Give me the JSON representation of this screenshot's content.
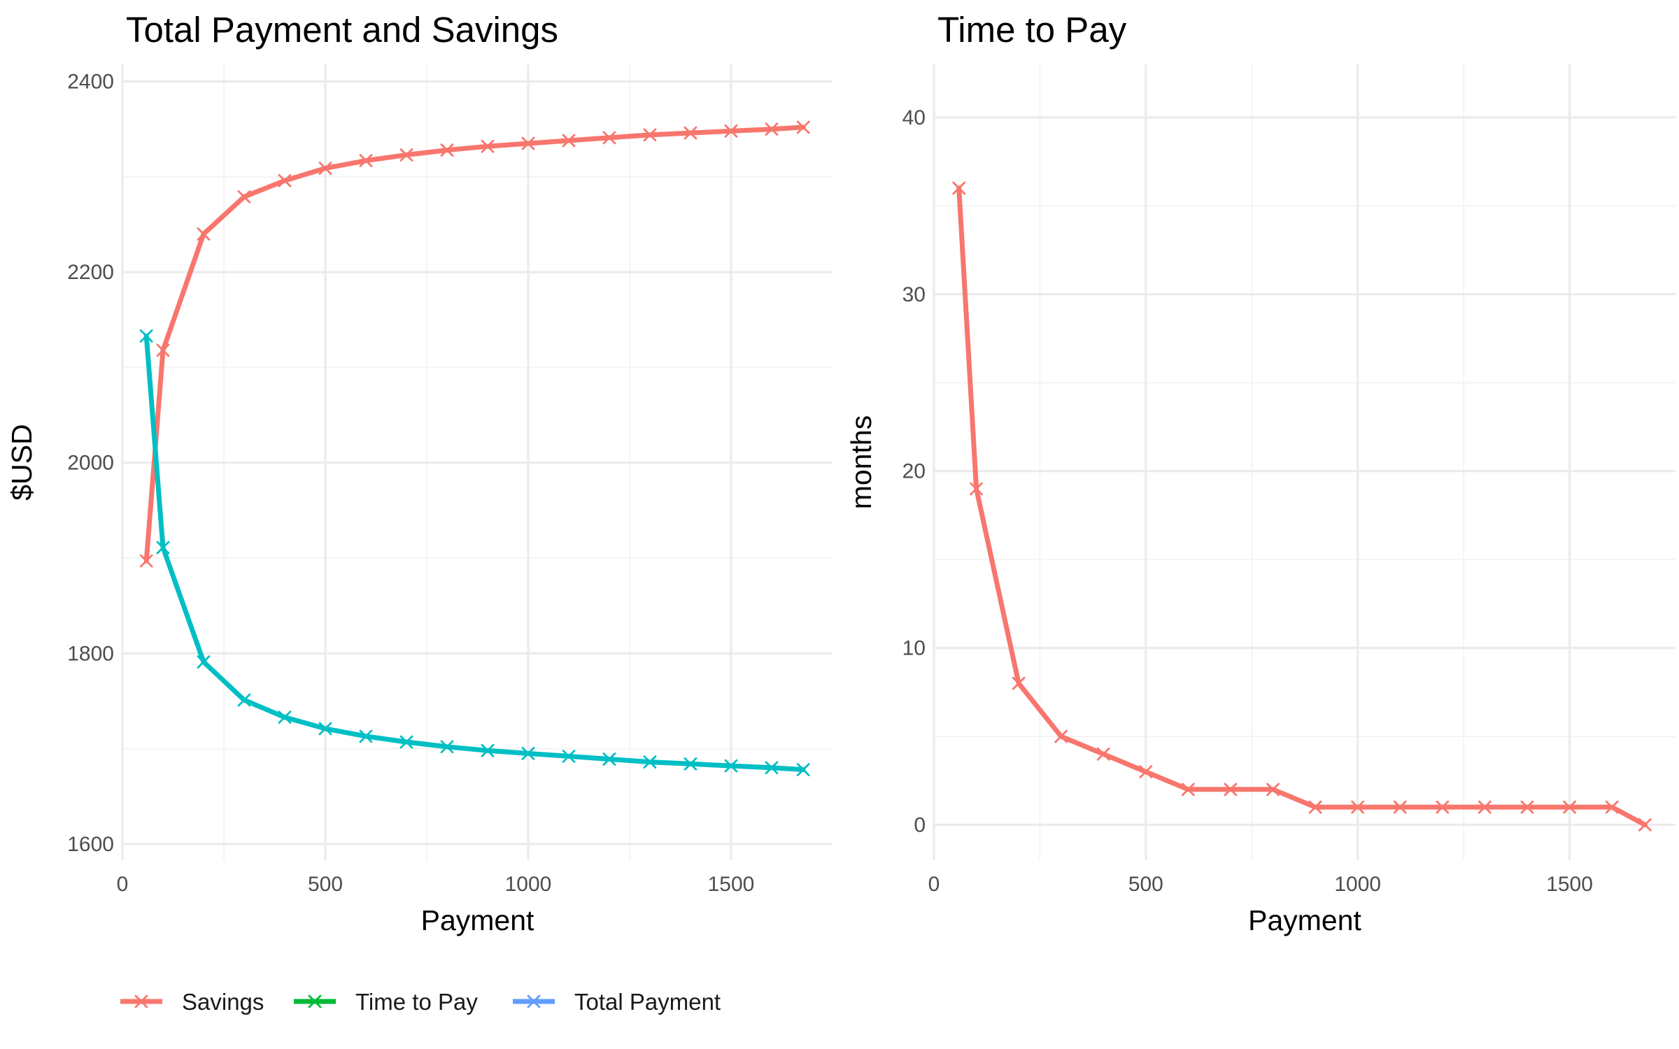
{
  "chart_data": [
    {
      "type": "line",
      "title": "Total Payment and Savings",
      "xlabel": "Payment",
      "ylabel": "$USD",
      "xlim": [
        0,
        1750
      ],
      "ylim": [
        1583,
        2418
      ],
      "x_ticks": [
        0,
        500,
        1000,
        1500
      ],
      "y_ticks": [
        1600,
        1800,
        2000,
        2200,
        2400
      ],
      "grid": true,
      "series": [
        {
          "name": "Savings",
          "color": "#F8766D",
          "x": [
            59,
            100,
            200,
            300,
            400,
            500,
            600,
            700,
            800,
            900,
            1000,
            1100,
            1200,
            1300,
            1400,
            1500,
            1600,
            1678
          ],
          "y": [
            1897,
            2118,
            2240,
            2279,
            2296,
            2309,
            2317,
            2323,
            2328,
            2332,
            2335,
            2338,
            2341,
            2344,
            2346,
            2348,
            2350,
            2352
          ]
        },
        {
          "name": "Total Payment",
          "color": "#00BFC4",
          "x": [
            59,
            100,
            200,
            300,
            400,
            500,
            600,
            700,
            800,
            900,
            1000,
            1100,
            1200,
            1300,
            1400,
            1500,
            1600,
            1678
          ],
          "y": [
            2133,
            1911,
            1791,
            1751,
            1733,
            1721,
            1713,
            1707,
            1702,
            1698,
            1695,
            1692,
            1689,
            1686,
            1684,
            1682,
            1680,
            1678
          ]
        }
      ]
    },
    {
      "type": "line",
      "title": "Time to Pay",
      "xlabel": "Payment",
      "ylabel": "months",
      "xlim": [
        0,
        1750
      ],
      "ylim": [
        -2,
        43
      ],
      "x_ticks": [
        0,
        500,
        1000,
        1500
      ],
      "y_ticks": [
        0,
        10,
        20,
        30,
        40
      ],
      "grid": true,
      "series": [
        {
          "name": "Time to Pay",
          "color": "#F8766D",
          "x": [
            59,
            100,
            200,
            300,
            400,
            500,
            600,
            700,
            800,
            900,
            1000,
            1100,
            1200,
            1300,
            1400,
            1500,
            1600,
            1678
          ],
          "y": [
            36,
            19,
            8,
            5,
            4,
            3,
            2,
            2,
            2,
            1,
            1,
            1,
            1,
            1,
            1,
            1,
            1,
            0
          ]
        }
      ]
    }
  ],
  "legend": {
    "position": "bottom-left",
    "items": [
      {
        "label": "Savings",
        "color": "#F8766D"
      },
      {
        "label": "Time to Pay",
        "color": "#00BA38"
      },
      {
        "label": "Total Payment",
        "color": "#619CFF"
      }
    ]
  }
}
